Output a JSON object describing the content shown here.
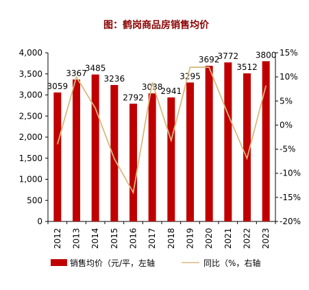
{
  "chart_data": {
    "type": "bar+line",
    "title": "图：鹤岗商品房销售均价",
    "categories": [
      "2012",
      "2013",
      "2014",
      "2015",
      "2016",
      "2017",
      "2018",
      "2019",
      "2020",
      "2021",
      "2022",
      "2023"
    ],
    "series": [
      {
        "name": "销售均价（元/平，左轴",
        "type": "bar",
        "axis": "left",
        "color": "#C00000",
        "values": [
          3059,
          3367,
          3485,
          3236,
          2792,
          3038,
          2941,
          3295,
          3692,
          3772,
          3512,
          3800
        ]
      },
      {
        "name": "同比（%，右轴",
        "type": "line",
        "axis": "right",
        "color": "#D9B97E",
        "values": [
          -4.0,
          10.0,
          3.5,
          -7.0,
          -14.0,
          8.8,
          -3.2,
          12.0,
          12.0,
          2.2,
          -6.9,
          8.2
        ]
      }
    ],
    "y_left": {
      "ylim": [
        0,
        4000
      ],
      "ticks": [
        "0",
        "500",
        "1,000",
        "1,500",
        "2,000",
        "2,500",
        "3,000",
        "3,500",
        "4,000"
      ],
      "tick_values": [
        0,
        500,
        1000,
        1500,
        2000,
        2500,
        3000,
        3500,
        4000
      ]
    },
    "y_right": {
      "ylim": [
        -20,
        15
      ],
      "ticks": [
        "-20%",
        "-15%",
        "-10%",
        "-5%",
        "0%",
        "5%",
        "10%",
        "15%"
      ],
      "tick_values": [
        -20,
        -15,
        -10,
        -5,
        0,
        5,
        10,
        15
      ]
    },
    "data_labels": [
      "3059",
      "3367",
      "3485",
      "3236",
      "2792",
      "3038",
      "2941",
      "3295",
      "3692",
      "3772",
      "3512",
      "3800"
    ],
    "grid": false,
    "legend_position": "bottom"
  }
}
